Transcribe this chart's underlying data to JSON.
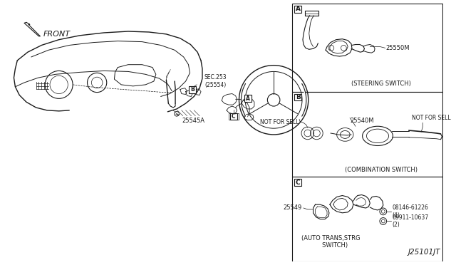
{
  "bg_color": "#ffffff",
  "lc": "#1a1a1a",
  "fig_width": 6.4,
  "fig_height": 3.72,
  "dpi": 100,
  "title_code": "J25101JT",
  "front_label": "FRONT",
  "sec_label": "SEC.253\n(25554)",
  "label_A": "A",
  "label_B": "B",
  "label_C": "C",
  "part_25545A": "25545A",
  "part_25550M": "25550M",
  "part_25540M": "25540M",
  "part_25549": "25549",
  "part_08146": "08146-61226\n(4)",
  "part_09911": "09911-10637\n(2)",
  "label_steering": "(STEERING SWITCH)",
  "label_combination": "(COMBINATION SWITCH)",
  "label_autotrans": "(AUTO TRANS,STRG\n     SWITCH)",
  "label_not_sell_1": "NOT FOR SELL",
  "label_not_sell_2": "NOT FOR SELL"
}
